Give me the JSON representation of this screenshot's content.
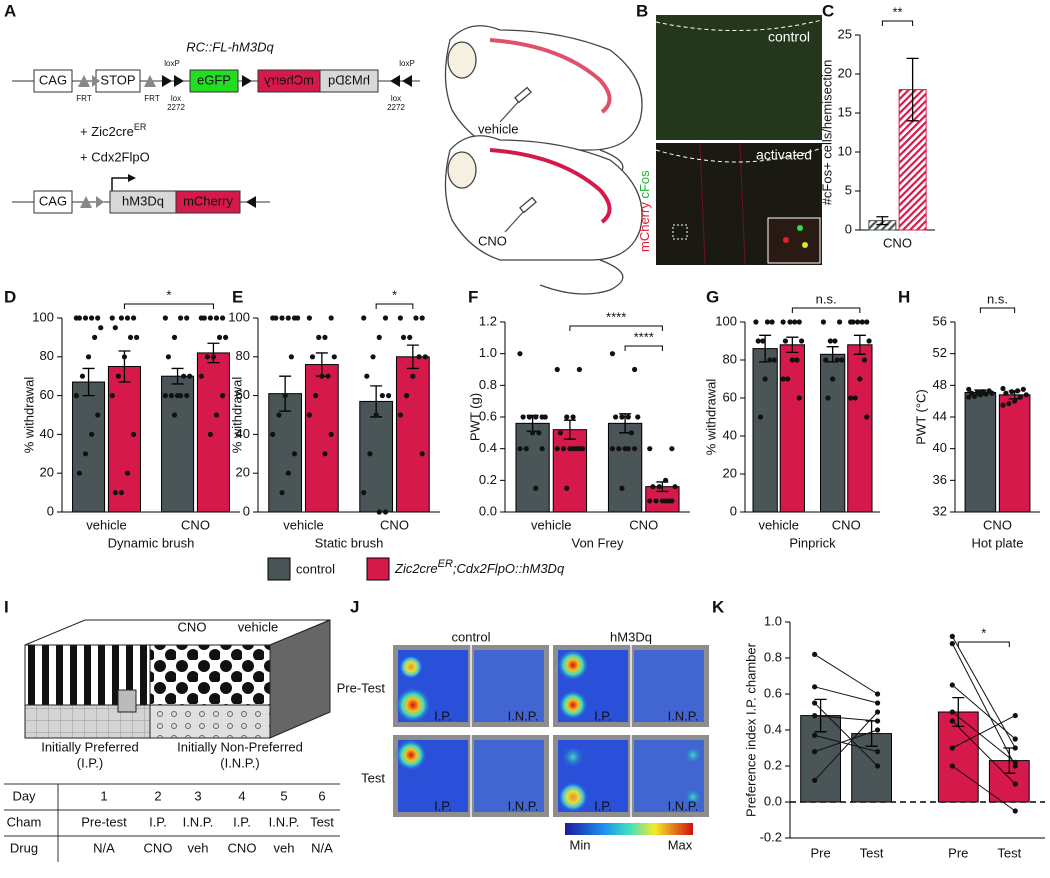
{
  "panel_labels": [
    "A",
    "B",
    "C",
    "D",
    "E",
    "F",
    "G",
    "H",
    "I",
    "J",
    "K"
  ],
  "construct": {
    "title": "RC::FL-hM3Dq",
    "elements": [
      "CAG",
      "STOP",
      "eGFP",
      "mCherry",
      "hM3Dq"
    ],
    "sites": [
      "FRT",
      "loxP",
      "lox",
      "2272"
    ],
    "recombinases": [
      [
        "+ Zic2cre",
        "ER"
      ],
      [
        "+ Cdx2FlpO"
      ]
    ],
    "recombined": [
      "CAG",
      "hM3Dq",
      "mCherry"
    ]
  },
  "mice": [
    "vehicle",
    "CNO"
  ],
  "micrograph": {
    "panels": [
      "control",
      "activated"
    ],
    "stains": [
      "mCherry",
      "cFos"
    ]
  },
  "legend": [
    {
      "name": [
        "control"
      ],
      "color": "#4a5557"
    },
    {
      "name": [
        "Zic2cre",
        "ER",
        ";Cdx2FlpO::hM3Dq"
      ],
      "color": "#d6194b"
    }
  ],
  "chamber": {
    "drugs": [
      "CNO",
      "vehicle"
    ],
    "sides": [
      [
        "Initially Preferred",
        "(I.P.)"
      ],
      [
        "Initially Non-Preferred",
        "(I.N.P.)"
      ]
    ]
  },
  "schedule": {
    "rows": [
      [
        "Day",
        "1",
        "2",
        "3",
        "4",
        "5",
        "6"
      ],
      [
        "Cham",
        "Pre-test",
        "I.P.",
        "I.N.P.",
        "I.P.",
        "I.N.P.",
        "Test"
      ],
      [
        "Drug",
        "N/A",
        "CNO",
        "veh",
        "CNO",
        "veh",
        "N/A"
      ]
    ]
  },
  "heatmap": {
    "columns": [
      "control",
      "hM3Dq"
    ],
    "rows": [
      "Pre-Test",
      "Test"
    ],
    "zones": [
      "I.P.",
      "I.N.P."
    ],
    "scale": [
      "Min",
      "Max"
    ]
  },
  "chart_data": [
    {
      "type": "bar",
      "categories": [
        "CNO"
      ],
      "ylabel": "#cFos+ cells/hemisection",
      "ylim": [
        0,
        25
      ],
      "yticks": [
        0,
        5,
        10,
        15,
        20,
        25
      ],
      "hatched": true,
      "series": [
        {
          "color": "#4a5557",
          "values": [
            1.2
          ],
          "errors": [
            0.5
          ]
        },
        {
          "color": "#d6194b",
          "values": [
            18
          ],
          "errors": [
            4
          ]
        }
      ],
      "annotations": [
        {
          "text": "**",
          "between": [
            [
              0,
              0
            ],
            [
              1,
              0
            ]
          ]
        }
      ]
    },
    {
      "type": "bar",
      "categories": [
        "vehicle",
        "CNO"
      ],
      "xlabel": "Dynamic brush",
      "ylabel": "% withdrawal",
      "ylim": [
        0,
        100
      ],
      "yticks": [
        0,
        20,
        40,
        60,
        80,
        100
      ],
      "series": [
        {
          "color": "#4a5557",
          "values": [
            67,
            70
          ],
          "errors": [
            7,
            4
          ],
          "points": [
            [
              100,
              100,
              100,
              100,
              100,
              95,
              90,
              80,
              70,
              60,
              50,
              40,
              30,
              20
            ],
            [
              100,
              100,
              100,
              90,
              80,
              70,
              70,
              60,
              60,
              60,
              60,
              60,
              50
            ]
          ]
        },
        {
          "color": "#d6194b",
          "values": [
            75,
            82
          ],
          "errors": [
            8,
            5
          ],
          "points": [
            [
              100,
              100,
              100,
              100,
              95,
              90,
              90,
              80,
              70,
              60,
              40,
              20,
              10,
              10
            ],
            [
              100,
              100,
              100,
              100,
              100,
              90,
              90,
              80,
              80,
              70,
              60,
              50,
              40
            ]
          ]
        }
      ],
      "annotations": [
        {
          "text": "*",
          "between": [
            [
              1,
              0
            ],
            [
              1,
              1
            ]
          ]
        }
      ]
    },
    {
      "type": "bar",
      "categories": [
        "vehicle",
        "CNO"
      ],
      "xlabel": "Static brush",
      "ylabel": "% withdrawal",
      "ylim": [
        0,
        100
      ],
      "yticks": [
        0,
        20,
        40,
        60,
        80,
        100
      ],
      "series": [
        {
          "color": "#4a5557",
          "values": [
            61,
            57
          ],
          "errors": [
            9,
            8
          ],
          "points": [
            [
              100,
              100,
              100,
              100,
              100,
              100,
              80,
              60,
              50,
              40,
              30,
              20,
              10
            ],
            [
              100,
              100,
              90,
              80,
              70,
              60,
              60,
              50,
              30,
              10,
              0,
              0
            ]
          ]
        },
        {
          "color": "#d6194b",
          "values": [
            76,
            80
          ],
          "errors": [
            6,
            6
          ],
          "points": [
            [
              100,
              100,
              90,
              90,
              80,
              80,
              70,
              70,
              60,
              50,
              40,
              30
            ],
            [
              100,
              100,
              100,
              90,
              90,
              80,
              80,
              70,
              60,
              50,
              30
            ]
          ]
        }
      ],
      "annotations": [
        {
          "text": "*",
          "between": [
            [
              0,
              1
            ],
            [
              1,
              1
            ]
          ]
        }
      ]
    },
    {
      "type": "bar",
      "categories": [
        "vehicle",
        "CNO"
      ],
      "xlabel": "Von Frey",
      "ylabel": "PWT (g)",
      "ylim": [
        0,
        1.2
      ],
      "yticks": [
        {
          "value": 0,
          "label": "0.0"
        },
        0.2,
        0.4,
        0.6,
        0.8,
        {
          "value": 1,
          "label": "1.0"
        },
        1.2
      ],
      "series": [
        {
          "color": "#4a5557",
          "values": [
            0.56,
            0.56
          ],
          "errors": [
            0.05,
            0.06
          ],
          "points": [
            [
              1.0,
              0.6,
              0.6,
              0.6,
              0.6,
              0.6,
              0.5,
              0.5,
              0.4,
              0.4,
              0.4,
              0.15
            ],
            [
              1.0,
              0.9,
              0.6,
              0.6,
              0.6,
              0.6,
              0.5,
              0.4,
              0.4,
              0.4,
              0.4,
              0.4,
              0.15
            ]
          ]
        },
        {
          "color": "#d6194b",
          "values": [
            0.52,
            0.16
          ],
          "errors": [
            0.06,
            0.03
          ],
          "points": [
            [
              0.9,
              0.9,
              0.6,
              0.6,
              0.5,
              0.4,
              0.4,
              0.4,
              0.4,
              0.4,
              0.4,
              0.4,
              0.15
            ],
            [
              0.4,
              0.4,
              0.2,
              0.16,
              0.16,
              0.16,
              0.07,
              0.07,
              0.07,
              0.07,
              0.07,
              0.07
            ]
          ]
        }
      ],
      "annotations": [
        {
          "text": "****",
          "between": [
            [
              0,
              1
            ],
            [
              1,
              1
            ]
          ]
        },
        {
          "text": "****",
          "between": [
            [
              1,
              0
            ],
            [
              1,
              1
            ]
          ]
        }
      ]
    },
    {
      "type": "bar",
      "categories": [
        "vehicle",
        "CNO"
      ],
      "xlabel": "Pinprick",
      "ylabel": "% withdrawal",
      "ylim": [
        0,
        100
      ],
      "yticks": [
        0,
        20,
        40,
        60,
        80,
        100
      ],
      "series": [
        {
          "color": "#4a5557",
          "values": [
            86,
            83
          ],
          "errors": [
            7,
            4
          ],
          "points": [
            [
              100,
              100,
              100,
              90,
              90,
              80,
              80,
              70,
              50
            ],
            [
              100,
              100,
              90,
              90,
              80,
              80,
              80,
              70,
              60
            ]
          ]
        },
        {
          "color": "#d6194b",
          "values": [
            88,
            88
          ],
          "errors": [
            4,
            5
          ],
          "points": [
            [
              100,
              100,
              100,
              100,
              90,
              90,
              80,
              80,
              70,
              70,
              60
            ],
            [
              100,
              100,
              100,
              100,
              100,
              90,
              80,
              70,
              60,
              60,
              50
            ]
          ]
        }
      ],
      "annotations": [
        {
          "text": "n.s.",
          "between": [
            [
              1,
              0
            ],
            [
              1,
              1
            ]
          ]
        }
      ]
    },
    {
      "type": "bar",
      "categories": [
        "CNO"
      ],
      "xlabel": "Hot plate",
      "ylabel": "PWT (°C)",
      "ylim": [
        32,
        56
      ],
      "yticks": [
        32,
        36,
        40,
        44,
        48,
        52,
        56
      ],
      "series": [
        {
          "color": "#4a5557",
          "values": [
            47.1
          ],
          "errors": [
            0.3
          ],
          "points": [
            [
              47.5,
              47.3,
              47.2,
              47.1,
              47.0,
              47.0,
              46.9,
              46.8,
              46.6,
              46.5
            ]
          ]
        },
        {
          "color": "#d6194b",
          "values": [
            46.8
          ],
          "errors": [
            0.5
          ],
          "points": [
            [
              47.6,
              47.5,
              47.3,
              47.2,
              47.0,
              46.8,
              46.5,
              46.0,
              45.7,
              45.5
            ]
          ]
        }
      ],
      "annotations": [
        {
          "text": "n.s.",
          "between": [
            [
              0,
              0
            ],
            [
              1,
              0
            ]
          ]
        }
      ]
    },
    {
      "type": "paired_bar",
      "categories": [
        "Pre",
        "Test",
        "Pre",
        "Test"
      ],
      "ylabel": "Preference index I.P. chamber",
      "ylim": [
        -0.2,
        1.0
      ],
      "yticks": [
        -0.2,
        {
          "value": 0,
          "label": "0.0"
        },
        0.2,
        0.4,
        0.6,
        0.8,
        {
          "value": 1,
          "label": "1.0"
        }
      ],
      "colors": [
        "#4a5557",
        "#4a5557",
        "#d6194b",
        "#d6194b"
      ],
      "values": [
        0.48,
        0.38,
        0.5,
        0.23
      ],
      "errors": [
        0.09,
        0.07,
        0.08,
        0.07
      ],
      "points": [
        [
          0.82,
          0.64,
          0.55,
          0.48,
          0.37,
          0.28,
          0.12
        ],
        [
          0.6,
          0.55,
          0.2,
          0.45,
          0.28,
          0.4,
          0.5
        ],
        [
          0.92,
          0.88,
          0.65,
          0.5,
          0.45,
          0.3,
          0.2
        ],
        [
          0.3,
          0.2,
          0.35,
          0.22,
          0.1,
          0.48,
          -0.05
        ]
      ],
      "annotations": [
        {
          "text": "*",
          "between": [
            2,
            3
          ]
        }
      ]
    }
  ]
}
